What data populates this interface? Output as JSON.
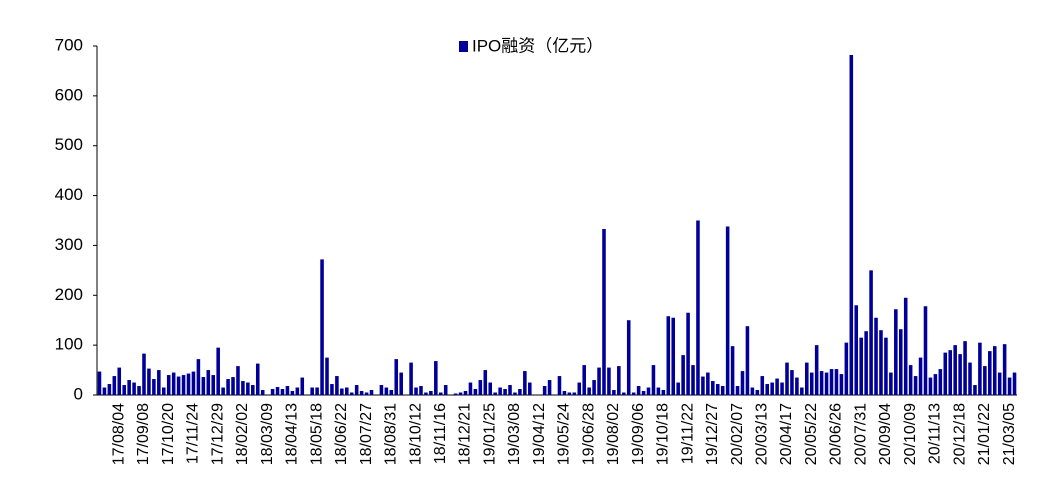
{
  "chart_data": {
    "type": "bar",
    "legend_label": "IPO融资（亿元）",
    "color": "#000099",
    "ylim": [
      0,
      700
    ],
    "yticks": [
      0,
      100,
      200,
      300,
      400,
      500,
      600,
      700
    ],
    "grid": false,
    "categories": [
      null,
      null,
      null,
      null,
      "17/08/04",
      null,
      null,
      null,
      null,
      "17/09/08",
      null,
      null,
      null,
      null,
      "17/10/20",
      null,
      null,
      null,
      null,
      "17/11/24",
      null,
      null,
      null,
      null,
      "17/12/29",
      null,
      null,
      null,
      null,
      "18/02/02",
      null,
      null,
      null,
      null,
      "18/03/09",
      null,
      null,
      null,
      null,
      "18/04/13",
      null,
      null,
      null,
      null,
      "18/05/18",
      null,
      null,
      null,
      null,
      "18/06/22",
      null,
      null,
      null,
      null,
      "18/07/27",
      null,
      null,
      null,
      null,
      "18/08/31",
      null,
      null,
      null,
      null,
      "18/10/12",
      null,
      null,
      null,
      null,
      "18/11/16",
      null,
      null,
      null,
      null,
      "18/12/21",
      null,
      null,
      null,
      null,
      "19/01/25",
      null,
      null,
      null,
      null,
      "19/03/08",
      null,
      null,
      null,
      null,
      "19/04/12",
      null,
      null,
      null,
      null,
      "19/05/24",
      null,
      null,
      null,
      null,
      "19/06/28",
      null,
      null,
      null,
      null,
      "19/08/02",
      null,
      null,
      null,
      null,
      "19/09/06",
      null,
      null,
      null,
      null,
      "19/10/18",
      null,
      null,
      null,
      null,
      "19/11/22",
      null,
      null,
      null,
      null,
      "19/12/27",
      null,
      null,
      null,
      null,
      "20/02/07",
      null,
      null,
      null,
      null,
      "20/03/13",
      null,
      null,
      null,
      null,
      "20/04/17",
      null,
      null,
      null,
      null,
      "20/05/22",
      null,
      null,
      null,
      null,
      "20/06/26",
      null,
      null,
      null,
      null,
      "20/07/31",
      null,
      null,
      null,
      null,
      "20/09/04",
      null,
      null,
      null,
      null,
      "20/10/09",
      null,
      null,
      null,
      null,
      "20/11/13",
      null,
      null,
      null,
      null,
      "20/12/18",
      null,
      null,
      null,
      null,
      "21/01/22",
      null,
      null,
      null,
      null,
      "21/03/05",
      null
    ],
    "values": [
      47,
      15,
      22,
      38,
      55,
      20,
      30,
      25,
      18,
      83,
      53,
      32,
      50,
      15,
      40,
      45,
      37,
      40,
      43,
      47,
      72,
      36,
      50,
      40,
      95,
      15,
      32,
      36,
      58,
      28,
      25,
      20,
      63,
      10,
      0,
      12,
      16,
      12,
      18,
      8,
      15,
      35,
      0,
      15,
      15,
      272,
      75,
      22,
      38,
      13,
      15,
      5,
      20,
      8,
      5,
      10,
      0,
      20,
      15,
      10,
      72,
      45,
      0,
      65,
      15,
      18,
      5,
      8,
      68,
      5,
      20,
      0,
      3,
      5,
      8,
      25,
      12,
      30,
      50,
      25,
      5,
      15,
      12,
      20,
      5,
      12,
      48,
      25,
      0,
      0,
      18,
      30,
      0,
      38,
      8,
      5,
      5,
      25,
      60,
      15,
      30,
      55,
      333,
      55,
      10,
      58,
      5,
      150,
      5,
      18,
      8,
      15,
      60,
      15,
      10,
      158,
      155,
      25,
      80,
      165,
      60,
      350,
      37,
      45,
      28,
      22,
      18,
      338,
      98,
      18,
      48,
      138,
      15,
      10,
      38,
      22,
      25,
      33,
      25,
      65,
      50,
      35,
      15,
      65,
      45,
      100,
      48,
      45,
      52,
      52,
      42,
      105,
      682,
      180,
      115,
      128,
      250,
      155,
      130,
      115,
      45,
      172,
      132,
      195,
      60,
      38,
      75,
      178,
      35,
      42,
      52,
      85,
      90,
      100,
      82,
      108,
      65,
      20,
      105,
      58,
      88,
      98,
      45,
      102,
      35,
      45
    ]
  }
}
